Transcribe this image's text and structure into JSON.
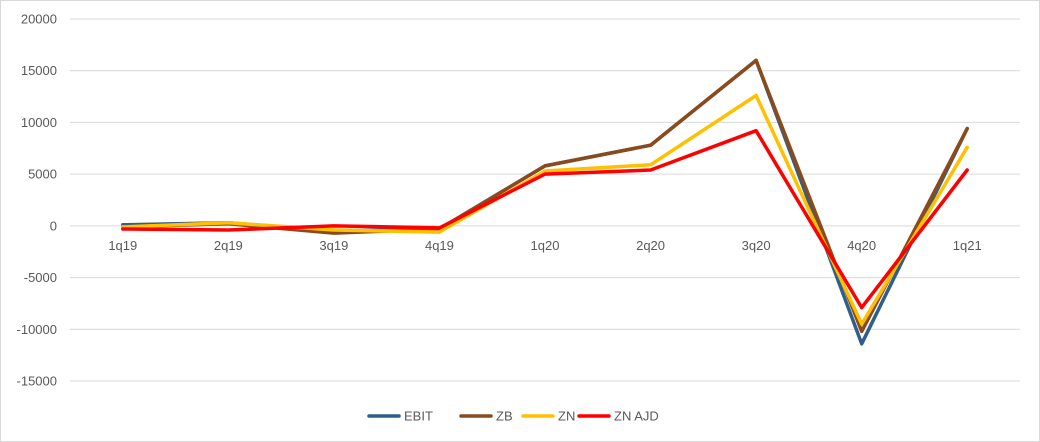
{
  "chart_data": {
    "type": "line",
    "title": "",
    "xlabel": "",
    "ylabel": "",
    "categories": [
      "1q19",
      "2q19",
      "3q19",
      "4q19",
      "1q20",
      "2q20",
      "3q20",
      "4q20",
      "1q21"
    ],
    "ylim": [
      -15000,
      20000
    ],
    "yticks": [
      20000,
      15000,
      10000,
      5000,
      0,
      -5000,
      -10000,
      -15000
    ],
    "grid": true,
    "legend_position": "bottom",
    "series": [
      {
        "name": "EBIT",
        "color": "#2E5E8A",
        "values": [
          100,
          300,
          -500,
          -300,
          5800,
          7800,
          16000,
          -11400,
          9400
        ]
      },
      {
        "name": "ZB",
        "color": "#8B4A1C",
        "values": [
          -100,
          200,
          -700,
          -300,
          5800,
          7800,
          16000,
          -10200,
          9400
        ]
      },
      {
        "name": "ZN",
        "color": "#FFC000",
        "values": [
          -100,
          300,
          -400,
          -600,
          5300,
          5900,
          12600,
          -9500,
          7600
        ]
      },
      {
        "name": "ZN AJD",
        "color": "#FF0000",
        "values": [
          -300,
          -400,
          0,
          -200,
          5000,
          5400,
          9200,
          -7900,
          5400
        ]
      }
    ]
  }
}
